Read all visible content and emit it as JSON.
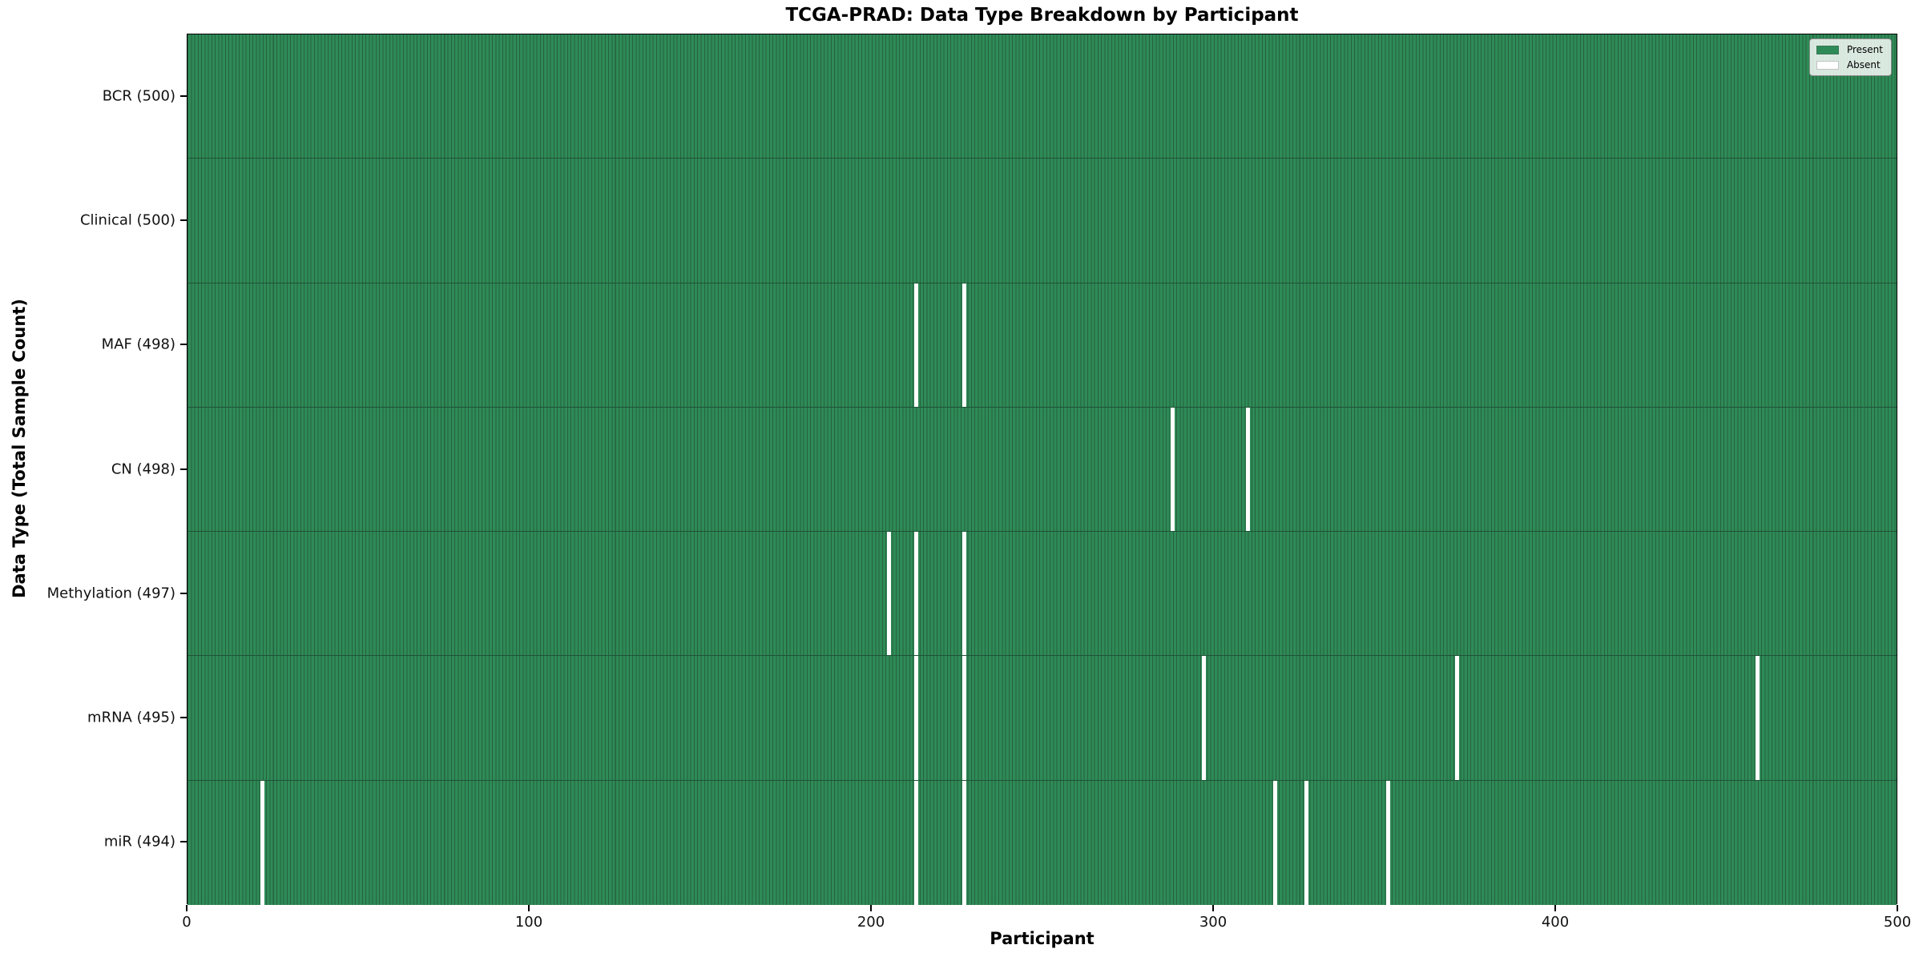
{
  "figure": {
    "title": "TCGA-PRAD: Data Type Breakdown by Participant",
    "xlabel": "Participant",
    "ylabel": "Data Type (Total Sample Count)"
  },
  "chart_data": {
    "type": "heatmap",
    "title": "TCGA-PRAD: Data Type Breakdown by Participant",
    "xlabel": "Participant",
    "ylabel": "Data Type (Total Sample Count)",
    "x_ticks": [
      0,
      100,
      200,
      300,
      400,
      500
    ],
    "xlim": [
      0,
      500
    ],
    "n_participants": 500,
    "grid": false,
    "legend_position": "upper right",
    "legend_items": [
      {
        "label": "Present",
        "color": "#2e8b57"
      },
      {
        "label": "Absent",
        "color": "#ffffff"
      }
    ],
    "colors": {
      "present": "#2e8b57",
      "bar_edge": "#27613f",
      "row_divider": "#1f5236",
      "absent": "#ffffff",
      "axis": "#000000"
    },
    "rows": [
      {
        "label": "BCR (500)",
        "data_type": "BCR",
        "present_count": 500,
        "absent_participants": []
      },
      {
        "label": "Clinical (500)",
        "data_type": "Clinical",
        "present_count": 500,
        "absent_participants": []
      },
      {
        "label": "MAF (498)",
        "data_type": "MAF",
        "present_count": 498,
        "absent_participants": [
          213,
          227
        ]
      },
      {
        "label": "CN (498)",
        "data_type": "CN",
        "present_count": 498,
        "absent_participants": [
          288,
          310
        ]
      },
      {
        "label": "Methylation (497)",
        "data_type": "Methylation",
        "present_count": 497,
        "absent_participants": [
          205,
          213,
          227
        ]
      },
      {
        "label": "mRNA (495)",
        "data_type": "mRNA",
        "present_count": 495,
        "absent_participants": [
          213,
          227,
          297,
          371,
          459
        ]
      },
      {
        "label": "miR (494)",
        "data_type": "miR",
        "present_count": 494,
        "absent_participants": [
          22,
          213,
          227,
          318,
          327,
          351
        ]
      }
    ]
  }
}
